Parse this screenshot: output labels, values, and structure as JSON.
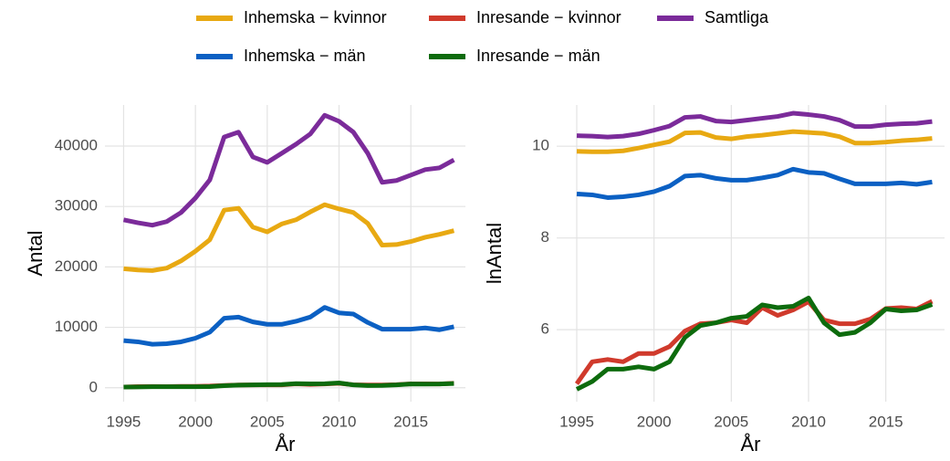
{
  "chart_data": [
    {
      "type": "line",
      "x_label": "År",
      "y_label": "Antal",
      "x": [
        1995,
        1996,
        1997,
        1998,
        1999,
        2000,
        2001,
        2002,
        2003,
        2004,
        2005,
        2006,
        2007,
        2008,
        2009,
        2010,
        2011,
        2012,
        2013,
        2014,
        2015,
        2016,
        2017,
        2018
      ],
      "xlim": [
        1993.7,
        2018.8
      ],
      "xticks": [
        1995,
        2000,
        2005,
        2010,
        2015
      ],
      "ylim": [
        -2300,
        46800
      ],
      "yticks": [
        0,
        10000,
        20000,
        30000,
        40000
      ],
      "grid": true,
      "series": [
        {
          "name": "Inhemska − kvinnor",
          "color": "#e8a912",
          "values": [
            19700,
            19500,
            19400,
            19800,
            21000,
            22600,
            24500,
            29400,
            29700,
            26600,
            25800,
            27100,
            27800,
            29100,
            30300,
            29600,
            29000,
            27200,
            23600,
            23700,
            24200,
            24900,
            25400,
            26000
          ]
        },
        {
          "name": "Inhemska − män",
          "color": "#0b60c3",
          "values": [
            7800,
            7600,
            7200,
            7300,
            7600,
            8200,
            9200,
            11500,
            11700,
            10900,
            10500,
            10500,
            11000,
            11700,
            13300,
            12400,
            12200,
            10800,
            9700,
            9700,
            9700,
            9900,
            9600,
            10100
          ]
        },
        {
          "name": "Inresande − kvinnor",
          "color": "#d03a2c",
          "values": [
            120,
            200,
            210,
            200,
            240,
            240,
            280,
            390,
            460,
            470,
            500,
            470,
            650,
            550,
            620,
            740,
            500,
            460,
            460,
            510,
            640,
            650,
            630,
            750
          ]
        },
        {
          "name": "Inresande − män",
          "color": "#0d6b0d",
          "values": [
            110,
            130,
            170,
            170,
            180,
            170,
            200,
            340,
            440,
            470,
            520,
            540,
            690,
            650,
            670,
            800,
            470,
            360,
            380,
            470,
            630,
            610,
            620,
            700
          ]
        },
        {
          "name": "Samtliga",
          "color": "#7b2b9a",
          "values": [
            27800,
            27300,
            26900,
            27500,
            29000,
            31400,
            34400,
            41500,
            42300,
            38200,
            37300,
            38800,
            40300,
            42000,
            45100,
            44100,
            42300,
            38800,
            34000,
            34300,
            35200,
            36100,
            36400,
            37700
          ]
        }
      ]
    },
    {
      "type": "line",
      "x_label": "År",
      "y_label": "lnAntal",
      "x": [
        1995,
        1996,
        1997,
        1998,
        1999,
        2000,
        2001,
        2002,
        2003,
        2004,
        2005,
        2006,
        2007,
        2008,
        2009,
        2010,
        2011,
        2012,
        2013,
        2014,
        2015,
        2016,
        2017,
        2018
      ],
      "xlim": [
        1993.7,
        2018.8
      ],
      "xticks": [
        1995,
        2000,
        2005,
        2010,
        2015
      ],
      "ylim": [
        4.43,
        10.9
      ],
      "yticks": [
        6,
        8,
        10
      ],
      "grid": true,
      "series": [
        {
          "color": "#e8a912",
          "values": [
            9.89,
            9.88,
            9.88,
            9.9,
            9.96,
            10.03,
            10.1,
            10.29,
            10.3,
            10.19,
            10.16,
            10.21,
            10.24,
            10.28,
            10.32,
            10.3,
            10.28,
            10.21,
            10.07,
            10.07,
            10.09,
            10.12,
            10.14,
            10.17
          ]
        },
        {
          "color": "#0b60c3",
          "values": [
            8.96,
            8.94,
            8.88,
            8.9,
            8.94,
            9.01,
            9.13,
            9.35,
            9.37,
            9.3,
            9.26,
            9.26,
            9.31,
            9.37,
            9.5,
            9.43,
            9.41,
            9.29,
            9.18,
            9.18,
            9.18,
            9.2,
            9.17,
            9.22
          ]
        },
        {
          "color": "#d03a2c",
          "values": [
            4.82,
            5.3,
            5.35,
            5.3,
            5.48,
            5.48,
            5.63,
            5.97,
            6.13,
            6.15,
            6.21,
            6.15,
            6.48,
            6.31,
            6.43,
            6.61,
            6.21,
            6.13,
            6.13,
            6.23,
            6.46,
            6.48,
            6.45,
            6.62
          ]
        },
        {
          "color": "#0d6b0d",
          "values": [
            4.7,
            4.87,
            5.14,
            5.14,
            5.19,
            5.14,
            5.3,
            5.83,
            6.09,
            6.15,
            6.25,
            6.29,
            6.54,
            6.48,
            6.51,
            6.69,
            6.15,
            5.89,
            5.94,
            6.15,
            6.45,
            6.41,
            6.43,
            6.55
          ]
        },
        {
          "color": "#7b2b9a",
          "values": [
            10.23,
            10.22,
            10.2,
            10.22,
            10.27,
            10.35,
            10.44,
            10.63,
            10.65,
            10.55,
            10.53,
            10.57,
            10.61,
            10.65,
            10.72,
            10.69,
            10.65,
            10.57,
            10.43,
            10.43,
            10.47,
            10.49,
            10.5,
            10.54
          ]
        }
      ]
    }
  ]
}
